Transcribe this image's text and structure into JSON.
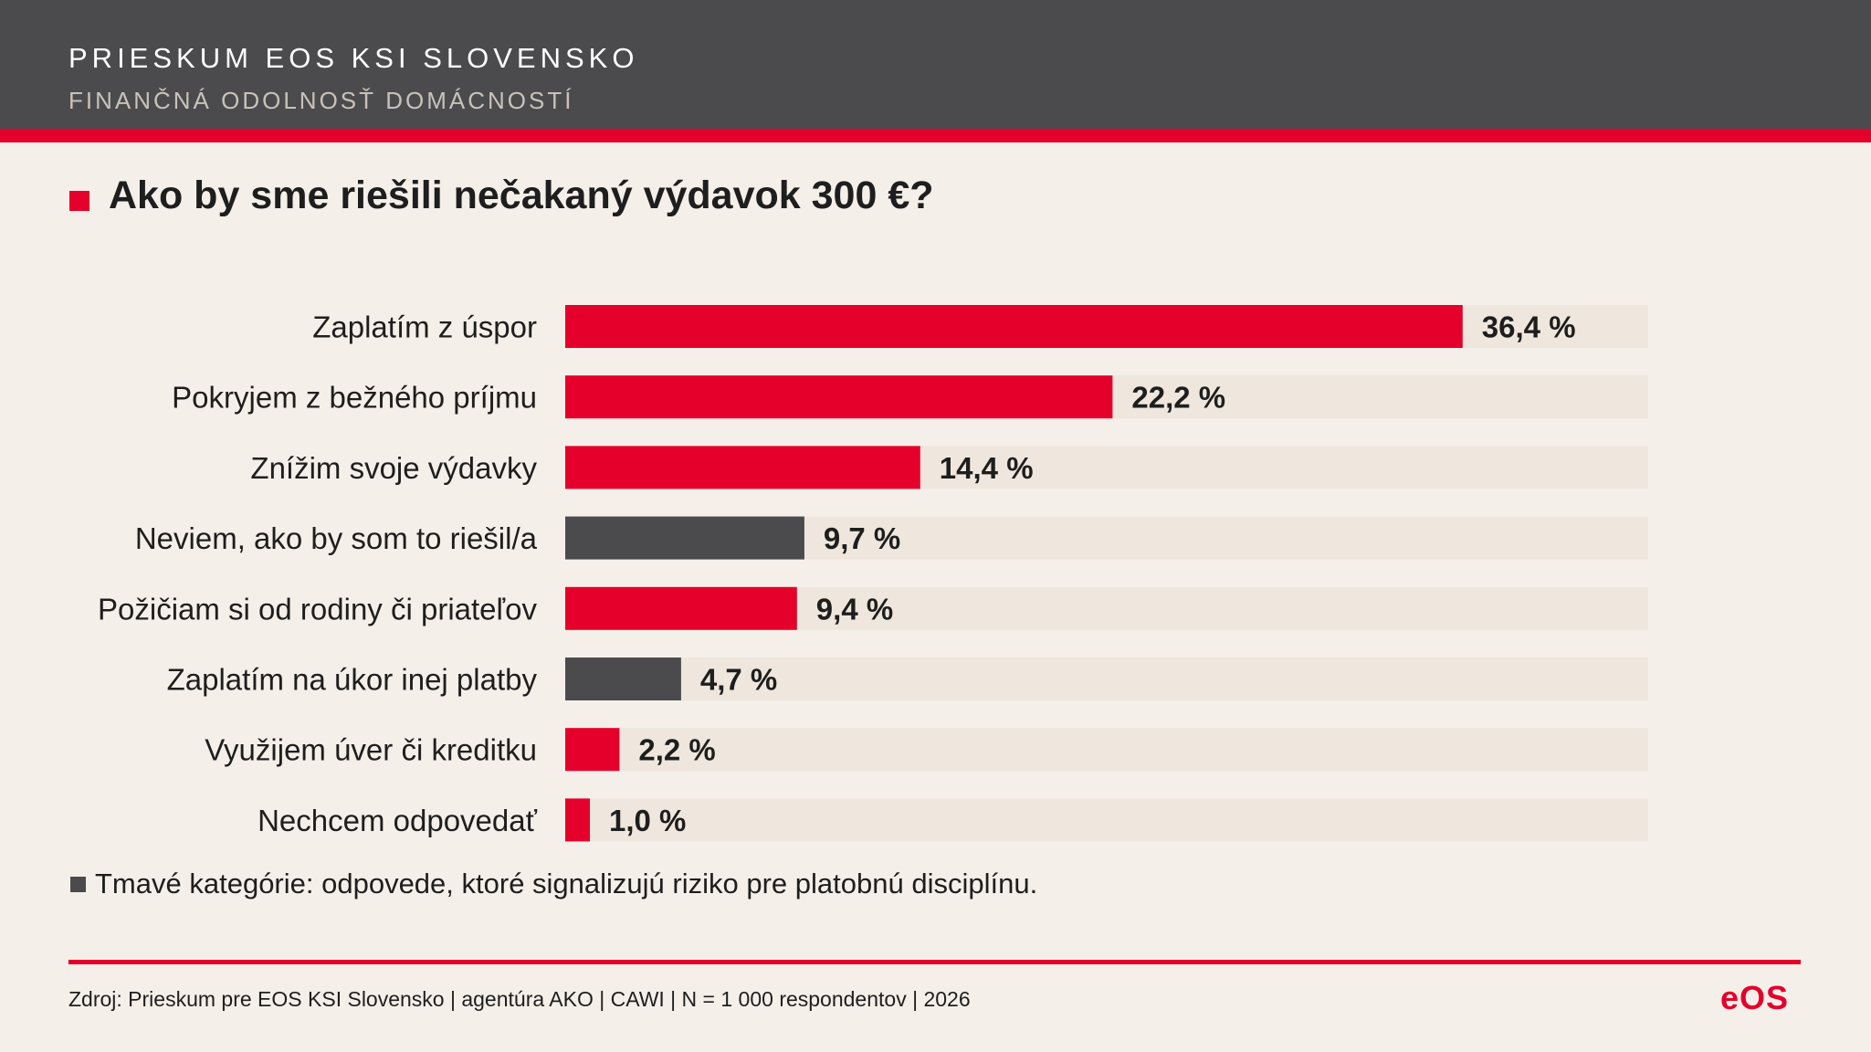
{
  "header": {
    "title": "PRIESKUM EOS KSI SLOVENSKO",
    "subtitle": "FINANČNÁ ODOLNOSŤ DOMÁCNOSTÍ"
  },
  "question": "Ako by sme riešili nečakaný výdavok 300 €?",
  "note": "Tmavé kategórie: odpovede, ktoré signalizujú riziko pre platobnú disciplínu.",
  "source": "Zdroj: Prieskum pre EOS KSI Slovensko | agentúra AKO | CAWI | N = 1 000 respondentov | 2026",
  "logo": "eOS",
  "colors": {
    "accent": "#e4002b",
    "dark": "#4b4b4d",
    "track": "#efe7dd",
    "background": "#f5efe9"
  },
  "chart_data": {
    "type": "bar",
    "orientation": "horizontal",
    "categories": [
      "Zaplatím z úspor",
      "Pokryjem z bežného príjmu",
      "Znížim svoje výdavky",
      "Neviem, ako by som to riešil/a",
      "Požičiam si od rodiny či priateľov",
      "Zaplatím na úkor inej platby",
      "Využijem úver či kreditku",
      "Nechcem odpovedať"
    ],
    "values": [
      36.4,
      22.2,
      14.4,
      9.7,
      9.4,
      4.7,
      2.2,
      1.0
    ],
    "value_labels": [
      "36,4 %",
      "22,2 %",
      "14,4 %",
      "9,7 %",
      "9,4 %",
      "4,7 %",
      "2,2 %",
      "1,0 %"
    ],
    "highlight": [
      "red",
      "red",
      "red",
      "dark",
      "red",
      "dark",
      "red",
      "red"
    ],
    "xlim": [
      0,
      40
    ],
    "grid": false,
    "legend": "none"
  }
}
